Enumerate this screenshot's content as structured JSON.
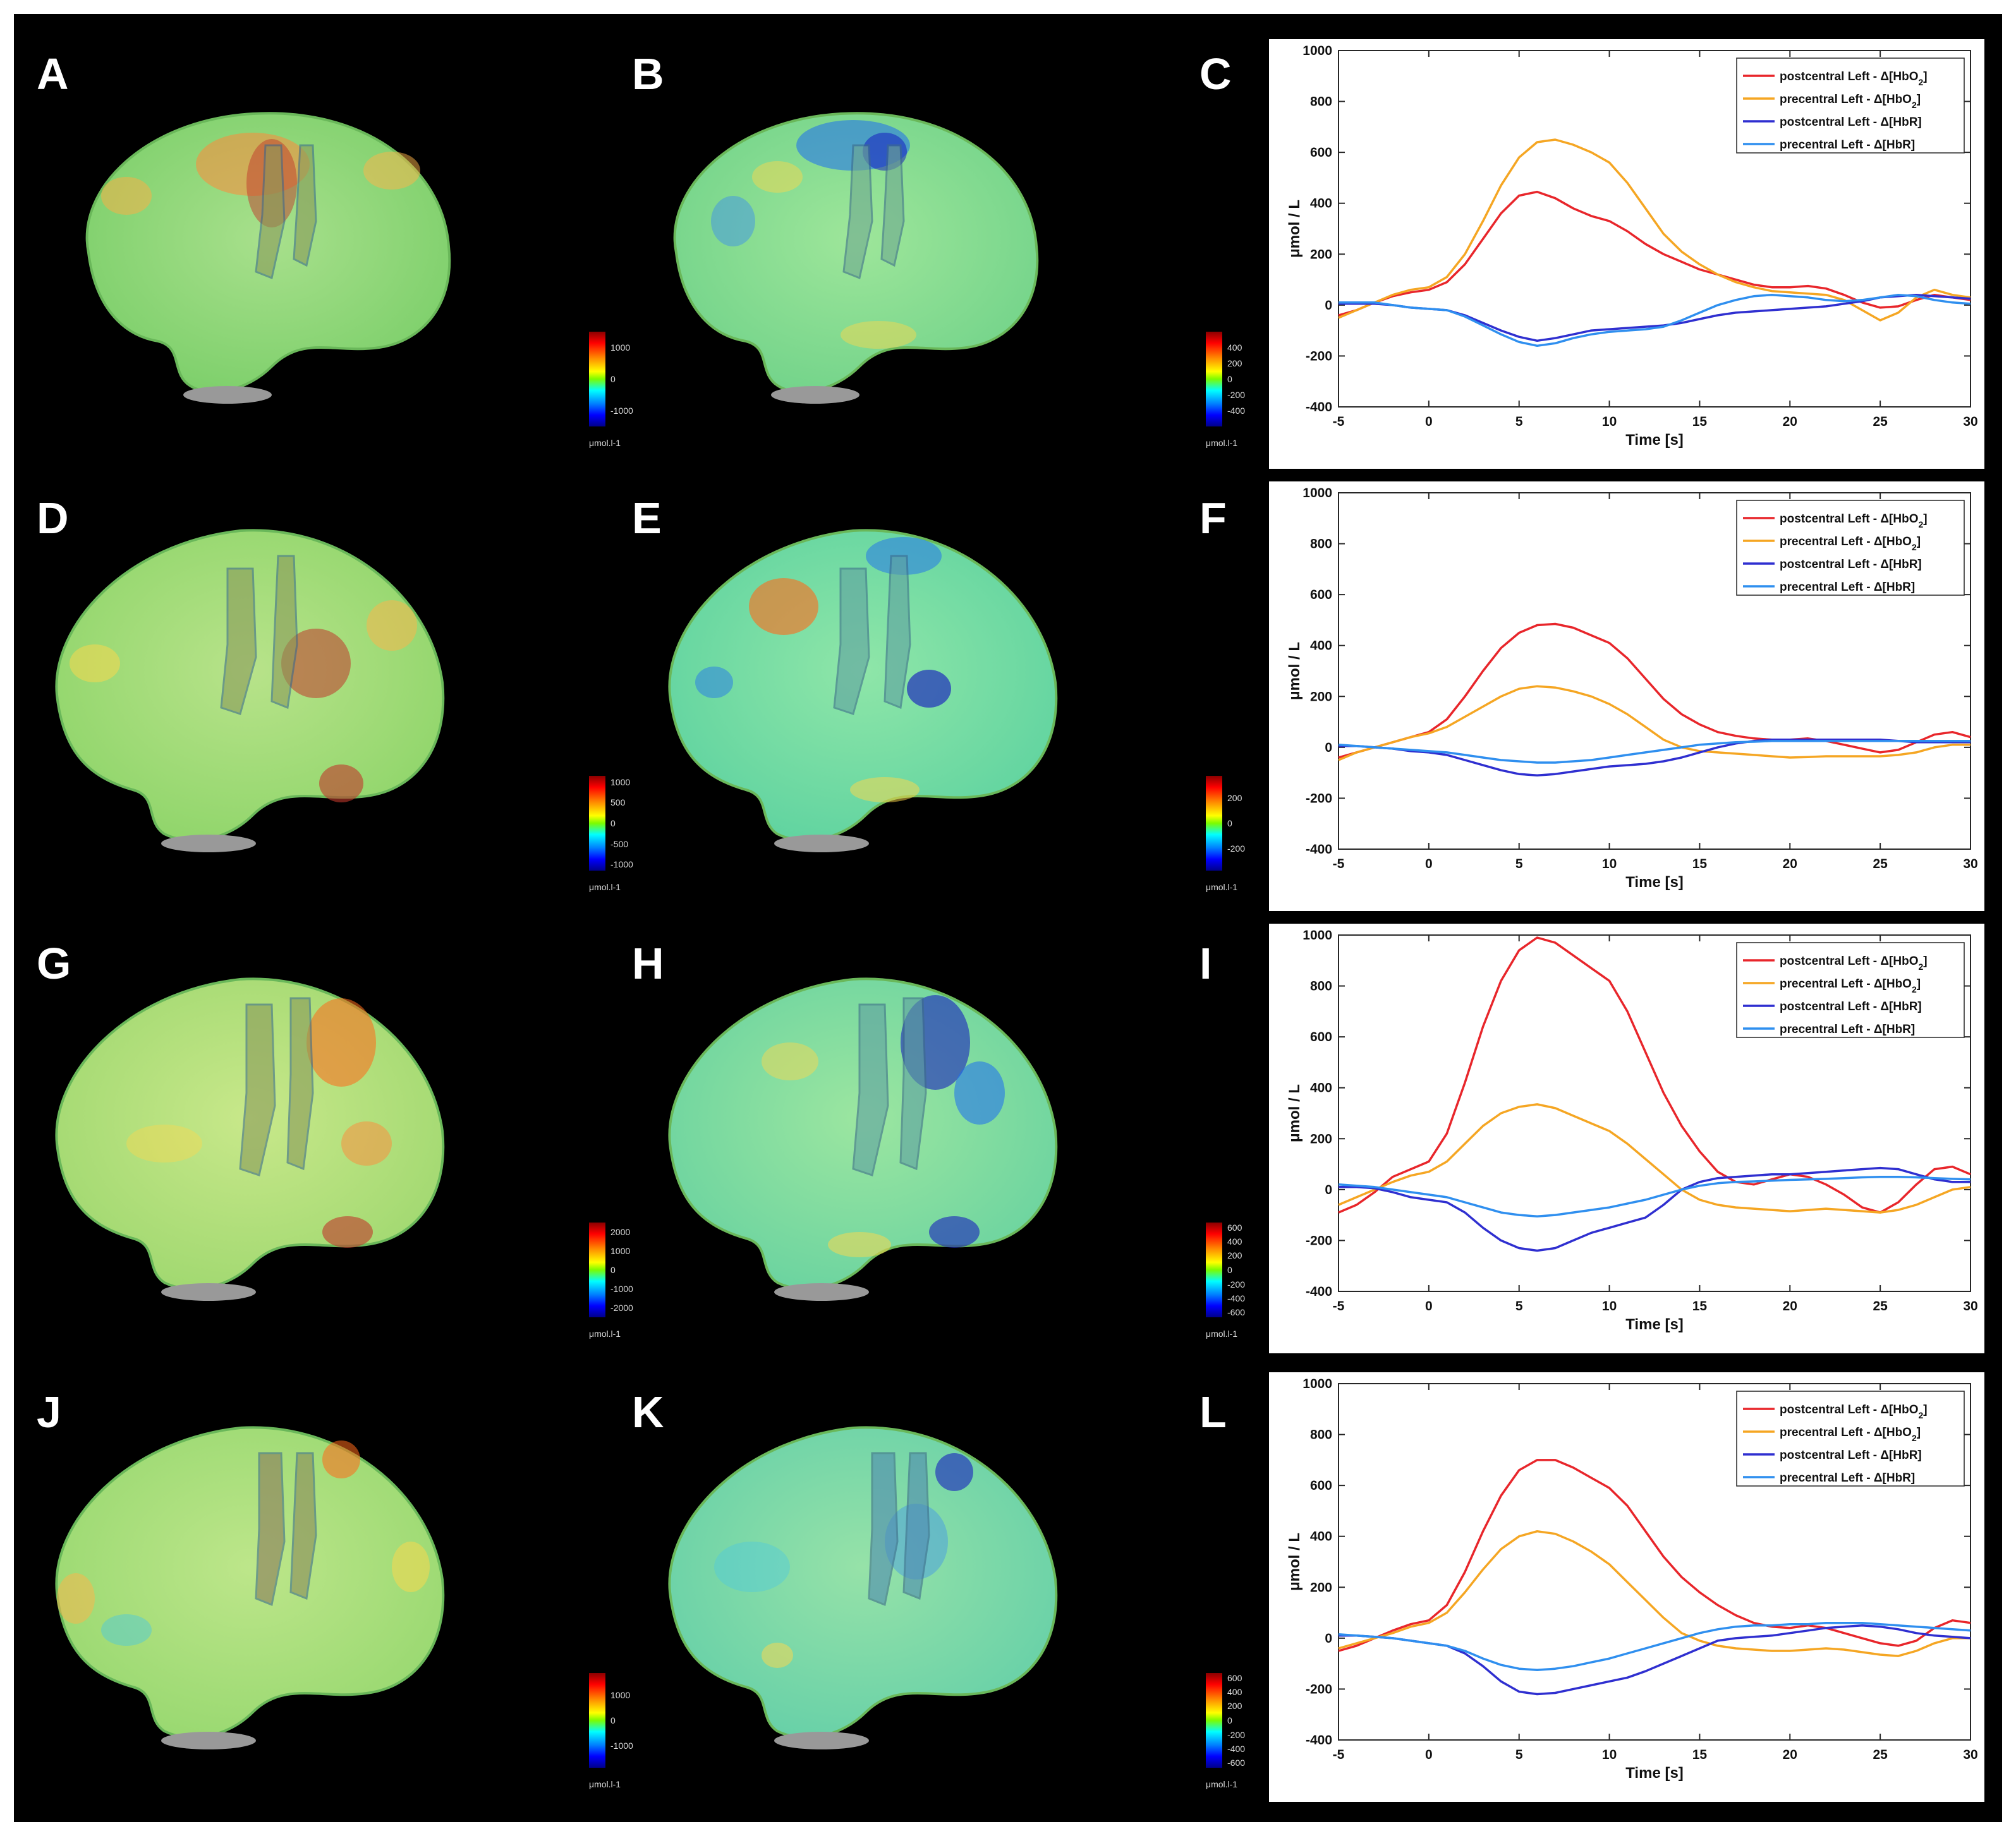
{
  "panel_labels": [
    "A",
    "B",
    "C",
    "D",
    "E",
    "F",
    "G",
    "H",
    "I",
    "J",
    "K",
    "L"
  ],
  "colors": {
    "postcentral_HbO2": "#e8262b",
    "precentral_HbO2": "#f5a623",
    "postcentral_HbR": "#2f2fd0",
    "precentral_HbR": "#2f8fef",
    "background": "#000000"
  },
  "colorbars": [
    {
      "ticks": [
        "1000",
        "0",
        "-1000"
      ],
      "unit": "μmol.l-1"
    },
    {
      "ticks": [
        "400",
        "200",
        "0",
        "-200",
        "-400"
      ],
      "unit": "μmol.l-1"
    },
    {
      "ticks": [
        "1000",
        "500",
        "0",
        "-500",
        "-1000"
      ],
      "unit": "μmol.l-1"
    },
    {
      "ticks": [
        "200",
        "0",
        "-200"
      ],
      "unit": "μmol.l-1"
    },
    {
      "ticks": [
        "2000",
        "1000",
        "0",
        "-1000",
        "-2000"
      ],
      "unit": "μmol.l-1"
    },
    {
      "ticks": [
        "600",
        "400",
        "200",
        "0",
        "-200",
        "-400",
        "-600"
      ],
      "unit": "μmol.l-1"
    },
    {
      "ticks": [
        "1000",
        "0",
        "-1000"
      ],
      "unit": "μmol.l-1"
    },
    {
      "ticks": [
        "600",
        "400",
        "200",
        "0",
        "-200",
        "-400",
        "-600"
      ],
      "unit": "μmol.l-1"
    }
  ],
  "chart_data": [
    {
      "panel": "C",
      "type": "line",
      "xlabel": "Time [s]",
      "ylabel": "μmol / L",
      "xlim": [
        -5,
        30
      ],
      "ylim": [
        -400,
        1000
      ],
      "xticks": [
        "-5",
        "0",
        "5",
        "10",
        "15",
        "20",
        "25",
        "30"
      ],
      "yticks": [
        "-400",
        "-200",
        "0",
        "200",
        "400",
        "600",
        "800",
        "1000"
      ],
      "legend_position": "top-right",
      "x": [
        -5,
        -4,
        -3,
        -2,
        -1,
        0,
        1,
        2,
        3,
        4,
        5,
        6,
        7,
        8,
        9,
        10,
        11,
        12,
        13,
        14,
        15,
        16,
        17,
        18,
        19,
        20,
        21,
        22,
        23,
        24,
        25,
        26,
        27,
        28,
        29,
        30
      ],
      "series": [
        {
          "name": "postcentral Left - Δ[HbO2]",
          "values": [
            -40,
            -20,
            10,
            35,
            50,
            60,
            90,
            160,
            260,
            360,
            430,
            445,
            420,
            380,
            350,
            330,
            290,
            240,
            200,
            170,
            140,
            120,
            100,
            80,
            70,
            70,
            75,
            65,
            40,
            10,
            -10,
            -5,
            20,
            40,
            30,
            20
          ]
        },
        {
          "name": "precentral Left - Δ[HbO2]",
          "values": [
            -50,
            -20,
            10,
            40,
            60,
            70,
            110,
            200,
            330,
            470,
            580,
            640,
            650,
            630,
            600,
            560,
            480,
            380,
            280,
            210,
            160,
            120,
            90,
            70,
            55,
            50,
            45,
            40,
            20,
            -20,
            -60,
            -30,
            30,
            60,
            40,
            30
          ]
        },
        {
          "name": "postcentral Left - Δ[HbR]",
          "values": [
            5,
            5,
            5,
            0,
            -10,
            -15,
            -20,
            -40,
            -70,
            -100,
            -125,
            -140,
            -130,
            -115,
            -100,
            -95,
            -90,
            -85,
            -80,
            -70,
            -55,
            -40,
            -30,
            -25,
            -20,
            -15,
            -10,
            -5,
            5,
            15,
            30,
            35,
            40,
            35,
            30,
            25
          ]
        },
        {
          "name": "precentral Left - Δ[HbR]",
          "values": [
            10,
            10,
            10,
            0,
            -10,
            -15,
            -20,
            -45,
            -80,
            -115,
            -145,
            -160,
            -150,
            -130,
            -115,
            -105,
            -100,
            -95,
            -85,
            -60,
            -30,
            0,
            20,
            35,
            40,
            35,
            30,
            20,
            15,
            20,
            30,
            40,
            35,
            20,
            10,
            5
          ]
        }
      ]
    },
    {
      "panel": "F",
      "type": "line",
      "xlabel": "Time [s]",
      "ylabel": "μmol / L",
      "xlim": [
        -5,
        30
      ],
      "ylim": [
        -400,
        1000
      ],
      "xticks": [
        "-5",
        "0",
        "5",
        "10",
        "15",
        "20",
        "25",
        "30"
      ],
      "yticks": [
        "-400",
        "-200",
        "0",
        "200",
        "400",
        "600",
        "800",
        "1000"
      ],
      "legend_position": "top-right",
      "x": [
        -5,
        -4,
        -3,
        -2,
        -1,
        0,
        1,
        2,
        3,
        4,
        5,
        6,
        7,
        8,
        9,
        10,
        11,
        12,
        13,
        14,
        15,
        16,
        17,
        18,
        19,
        20,
        21,
        22,
        23,
        24,
        25,
        26,
        27,
        28,
        29,
        30
      ],
      "series": [
        {
          "name": "postcentral Left - Δ[HbO2]",
          "values": [
            -40,
            -20,
            0,
            20,
            40,
            60,
            110,
            200,
            300,
            390,
            450,
            480,
            485,
            470,
            440,
            410,
            350,
            270,
            190,
            130,
            90,
            60,
            45,
            35,
            30,
            30,
            35,
            25,
            10,
            -5,
            -20,
            -10,
            20,
            50,
            60,
            40
          ]
        },
        {
          "name": "precentral Left - Δ[HbO2]",
          "values": [
            -50,
            -20,
            0,
            20,
            40,
            55,
            80,
            120,
            160,
            200,
            230,
            240,
            235,
            220,
            200,
            170,
            130,
            80,
            30,
            0,
            -15,
            -20,
            -25,
            -30,
            -35,
            -40,
            -38,
            -35,
            -35,
            -35,
            -35,
            -30,
            -20,
            0,
            10,
            10
          ]
        },
        {
          "name": "postcentral Left - Δ[HbR]",
          "values": [
            5,
            5,
            0,
            -5,
            -15,
            -20,
            -30,
            -50,
            -70,
            -90,
            -105,
            -110,
            -105,
            -95,
            -85,
            -75,
            -70,
            -65,
            -55,
            -40,
            -20,
            0,
            15,
            25,
            30,
            30,
            30,
            30,
            30,
            30,
            30,
            25,
            20,
            20,
            20,
            20
          ]
        },
        {
          "name": "precentral Left - Δ[HbR]",
          "values": [
            10,
            5,
            0,
            -5,
            -10,
            -15,
            -20,
            -30,
            -40,
            -50,
            -55,
            -60,
            -60,
            -55,
            -50,
            -40,
            -30,
            -20,
            -10,
            0,
            10,
            15,
            20,
            22,
            25,
            25,
            25,
            25,
            25,
            25,
            25,
            25,
            25,
            25,
            25,
            25
          ]
        }
      ]
    },
    {
      "panel": "I",
      "type": "line",
      "xlabel": "Time [s]",
      "ylabel": "μmol / L",
      "xlim": [
        -5,
        30
      ],
      "ylim": [
        -400,
        1000
      ],
      "xticks": [
        "-5",
        "0",
        "5",
        "10",
        "15",
        "20",
        "25",
        "30"
      ],
      "yticks": [
        "-400",
        "-200",
        "0",
        "200",
        "400",
        "600",
        "800",
        "1000"
      ],
      "legend_position": "top-right",
      "x": [
        -5,
        -4,
        -3,
        -2,
        -1,
        0,
        1,
        2,
        3,
        4,
        5,
        6,
        7,
        8,
        9,
        10,
        11,
        12,
        13,
        14,
        15,
        16,
        17,
        18,
        19,
        20,
        21,
        22,
        23,
        24,
        25,
        26,
        27,
        28,
        29,
        30
      ],
      "series": [
        {
          "name": "postcentral Left - Δ[HbO2]",
          "values": [
            -90,
            -60,
            -10,
            50,
            80,
            110,
            220,
            420,
            640,
            820,
            940,
            990,
            970,
            920,
            870,
            820,
            700,
            540,
            380,
            250,
            150,
            70,
            30,
            20,
            40,
            60,
            50,
            20,
            -20,
            -70,
            -90,
            -50,
            20,
            80,
            90,
            60
          ]
        },
        {
          "name": "precentral Left - Δ[HbO2]",
          "values": [
            -60,
            -30,
            0,
            30,
            55,
            70,
            110,
            180,
            250,
            300,
            325,
            335,
            320,
            290,
            260,
            230,
            180,
            120,
            60,
            0,
            -40,
            -60,
            -70,
            -75,
            -80,
            -85,
            -80,
            -75,
            -80,
            -85,
            -90,
            -80,
            -60,
            -30,
            0,
            10
          ]
        },
        {
          "name": "postcentral Left - Δ[HbR]",
          "values": [
            10,
            10,
            5,
            -10,
            -30,
            -40,
            -50,
            -90,
            -150,
            -200,
            -230,
            -240,
            -230,
            -200,
            -170,
            -150,
            -130,
            -110,
            -60,
            0,
            30,
            45,
            50,
            55,
            60,
            60,
            65,
            70,
            75,
            80,
            85,
            80,
            60,
            40,
            30,
            30
          ]
        },
        {
          "name": "precentral Left - Δ[HbR]",
          "values": [
            20,
            15,
            10,
            0,
            -10,
            -20,
            -30,
            -50,
            -70,
            -90,
            -100,
            -105,
            -100,
            -90,
            -80,
            -70,
            -55,
            -40,
            -20,
            0,
            15,
            25,
            30,
            32,
            35,
            38,
            40,
            42,
            45,
            48,
            50,
            50,
            48,
            45,
            42,
            40
          ]
        }
      ]
    },
    {
      "panel": "L",
      "type": "line",
      "xlabel": "Time [s]",
      "ylabel": "μmol / L",
      "xlim": [
        -5,
        30
      ],
      "ylim": [
        -400,
        1000
      ],
      "xticks": [
        "-5",
        "0",
        "5",
        "10",
        "15",
        "20",
        "25",
        "30"
      ],
      "yticks": [
        "-400",
        "-200",
        "0",
        "200",
        "400",
        "600",
        "800",
        "1000"
      ],
      "legend_position": "top-right",
      "x": [
        -5,
        -4,
        -3,
        -2,
        -1,
        0,
        1,
        2,
        3,
        4,
        5,
        6,
        7,
        8,
        9,
        10,
        11,
        12,
        13,
        14,
        15,
        16,
        17,
        18,
        19,
        20,
        21,
        22,
        23,
        24,
        25,
        26,
        27,
        28,
        29,
        30
      ],
      "series": [
        {
          "name": "postcentral Left - Δ[HbO2]",
          "values": [
            -50,
            -30,
            0,
            30,
            55,
            70,
            130,
            260,
            420,
            560,
            660,
            700,
            700,
            670,
            630,
            590,
            520,
            420,
            320,
            240,
            180,
            130,
            90,
            60,
            45,
            40,
            50,
            40,
            20,
            0,
            -20,
            -30,
            -10,
            40,
            70,
            60
          ]
        },
        {
          "name": "precentral Left - Δ[HbO2]",
          "values": [
            -40,
            -20,
            0,
            20,
            45,
            60,
            100,
            180,
            270,
            350,
            400,
            420,
            410,
            380,
            340,
            290,
            220,
            150,
            80,
            20,
            -10,
            -30,
            -40,
            -45,
            -50,
            -50,
            -45,
            -40,
            -45,
            -55,
            -65,
            -70,
            -50,
            -20,
            0,
            0
          ]
        },
        {
          "name": "postcentral Left - Δ[HbR]",
          "values": [
            10,
            10,
            5,
            0,
            -10,
            -20,
            -30,
            -60,
            -110,
            -170,
            -210,
            -220,
            -215,
            -200,
            -185,
            -170,
            -155,
            -130,
            -100,
            -70,
            -40,
            -10,
            0,
            5,
            10,
            20,
            30,
            40,
            45,
            50,
            45,
            35,
            20,
            10,
            5,
            0
          ]
        },
        {
          "name": "precentral Left - Δ[HbR]",
          "values": [
            15,
            10,
            5,
            0,
            -10,
            -20,
            -30,
            -50,
            -80,
            -105,
            -120,
            -125,
            -120,
            -110,
            -95,
            -80,
            -60,
            -40,
            -20,
            0,
            20,
            35,
            45,
            50,
            50,
            55,
            55,
            60,
            60,
            60,
            55,
            50,
            45,
            40,
            35,
            30
          ]
        }
      ]
    }
  ]
}
